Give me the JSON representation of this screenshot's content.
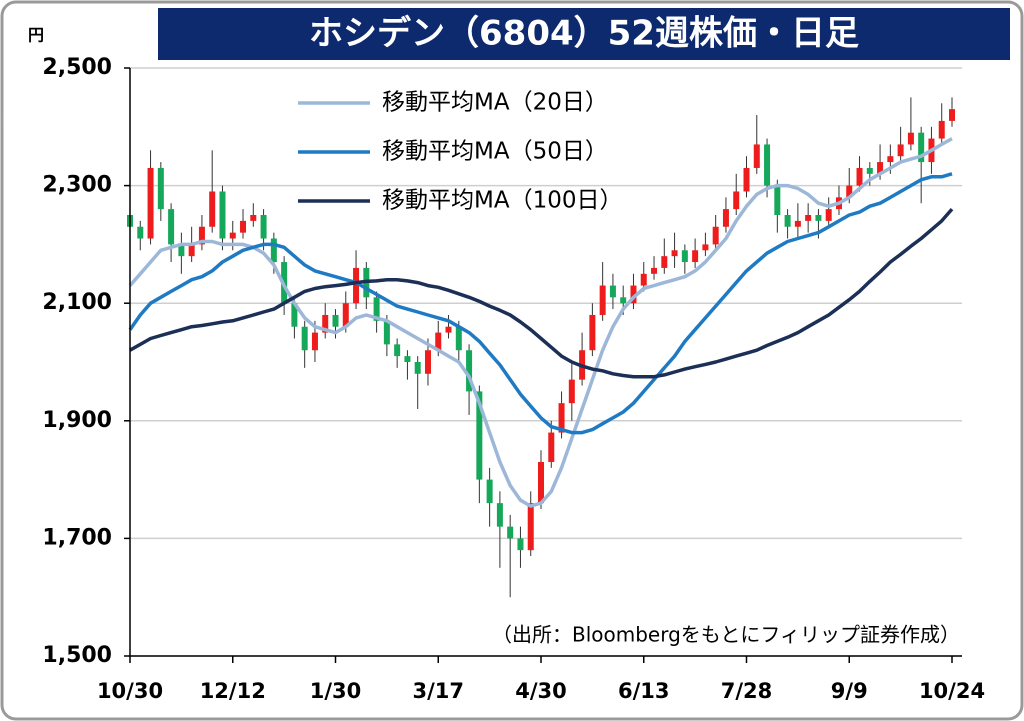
{
  "chart_data": {
    "type": "candlestick",
    "title": "ホシデン（6804）52週株価・日足",
    "y_unit": "円",
    "source": "（出所：Bloombergをもとにフィリップ証券作成）",
    "ylim": [
      1500,
      2500
    ],
    "yticks": [
      {
        "value": 1500,
        "label": "1,500"
      },
      {
        "value": 1700,
        "label": "1,700"
      },
      {
        "value": 1900,
        "label": "1,900"
      },
      {
        "value": 2100,
        "label": "2,100"
      },
      {
        "value": 2300,
        "label": "2,300"
      },
      {
        "value": 2500,
        "label": "2,500"
      }
    ],
    "grid": true,
    "categories": [
      "10/30",
      null,
      null,
      null,
      null,
      null,
      null,
      null,
      null,
      null,
      "12/12",
      null,
      null,
      null,
      null,
      null,
      null,
      null,
      null,
      null,
      "1/30",
      null,
      null,
      null,
      null,
      null,
      null,
      null,
      null,
      null,
      "3/17",
      null,
      null,
      null,
      null,
      null,
      null,
      null,
      null,
      null,
      "4/30",
      null,
      null,
      null,
      null,
      null,
      null,
      null,
      null,
      null,
      "6/13",
      null,
      null,
      null,
      null,
      null,
      null,
      null,
      null,
      null,
      "7/28",
      null,
      null,
      null,
      null,
      null,
      null,
      null,
      null,
      null,
      "9/9",
      null,
      null,
      null,
      null,
      null,
      null,
      null,
      null,
      null,
      "10/24"
    ],
    "candles": {
      "up_color": "#ee1c1c",
      "down_color": "#16a85a",
      "open": [
        2250,
        2230,
        2210,
        2330,
        2260,
        2200,
        2180,
        2200,
        2230,
        2290,
        2210,
        2220,
        2240,
        2250,
        2210,
        2170,
        2100,
        2060,
        2020,
        2050,
        2080,
        2060,
        2100,
        2160,
        2110,
        2070,
        2030,
        2010,
        2000,
        1980,
        2020,
        2050,
        2060,
        2020,
        1950,
        1800,
        1760,
        1720,
        1700,
        1680,
        1760,
        1830,
        1880,
        1930,
        1970,
        2020,
        2080,
        2130,
        2110,
        2100,
        2130,
        2150,
        2160,
        2180,
        2190,
        2170,
        2190,
        2200,
        2230,
        2260,
        2290,
        2330,
        2370,
        2300,
        2250,
        2230,
        2240,
        2250,
        2240,
        2260,
        2280,
        2300,
        2330,
        2320,
        2340,
        2350,
        2370,
        2390,
        2340,
        2380,
        2410
      ],
      "high": [
        2260,
        2240,
        2360,
        2340,
        2270,
        2220,
        2230,
        2250,
        2360,
        2300,
        2240,
        2260,
        2270,
        2260,
        2220,
        2180,
        2110,
        2070,
        2070,
        2100,
        2090,
        2120,
        2190,
        2170,
        2120,
        2080,
        2040,
        2020,
        2010,
        2040,
        2070,
        2080,
        2070,
        2030,
        1960,
        1820,
        1780,
        1740,
        1720,
        1780,
        1850,
        1900,
        1950,
        2000,
        2050,
        2100,
        2170,
        2150,
        2130,
        2150,
        2170,
        2180,
        2210,
        2220,
        2200,
        2210,
        2220,
        2250,
        2280,
        2320,
        2350,
        2420,
        2380,
        2310,
        2260,
        2270,
        2270,
        2260,
        2280,
        2300,
        2330,
        2350,
        2340,
        2370,
        2370,
        2400,
        2450,
        2400,
        2400,
        2440,
        2450
      ],
      "low": [
        2210,
        2190,
        2200,
        2240,
        2170,
        2150,
        2170,
        2190,
        2220,
        2190,
        2190,
        2210,
        2230,
        2190,
        2150,
        2080,
        2040,
        1990,
        2000,
        2040,
        2040,
        2050,
        2090,
        2090,
        2050,
        2010,
        1990,
        1970,
        1920,
        1960,
        2010,
        2040,
        2000,
        1910,
        1760,
        1720,
        1650,
        1600,
        1650,
        1670,
        1750,
        1820,
        1870,
        1900,
        1960,
        2010,
        2070,
        2090,
        2080,
        2090,
        2120,
        2140,
        2150,
        2160,
        2150,
        2160,
        2180,
        2190,
        2220,
        2250,
        2280,
        2320,
        2280,
        2220,
        2210,
        2210,
        2220,
        2210,
        2230,
        2250,
        2270,
        2290,
        2300,
        2310,
        2320,
        2340,
        2360,
        2270,
        2320,
        2370,
        2400
      ],
      "close": [
        2230,
        2210,
        2330,
        2260,
        2200,
        2180,
        2200,
        2230,
        2290,
        2210,
        2220,
        2240,
        2250,
        2210,
        2170,
        2100,
        2060,
        2020,
        2050,
        2080,
        2060,
        2100,
        2160,
        2110,
        2070,
        2030,
        2010,
        2000,
        1980,
        2020,
        2050,
        2060,
        2020,
        1950,
        1800,
        1760,
        1720,
        1700,
        1680,
        1760,
        1830,
        1880,
        1930,
        1970,
        2020,
        2080,
        2130,
        2110,
        2100,
        2130,
        2150,
        2160,
        2180,
        2190,
        2170,
        2190,
        2200,
        2230,
        2260,
        2290,
        2330,
        2370,
        2300,
        2250,
        2230,
        2240,
        2250,
        2240,
        2260,
        2280,
        2300,
        2330,
        2320,
        2340,
        2350,
        2370,
        2390,
        2340,
        2380,
        2410,
        2430
      ]
    },
    "series": [
      {
        "name": "移動平均MA（20日）",
        "color": "#9db7d9",
        "values": [
          2130,
          2150,
          2170,
          2190,
          2195,
          2200,
          2200,
          2205,
          2205,
          2200,
          2200,
          2200,
          2195,
          2185,
          2165,
          2130,
          2100,
          2075,
          2060,
          2055,
          2050,
          2060,
          2075,
          2080,
          2075,
          2070,
          2060,
          2050,
          2040,
          2030,
          2020,
          2010,
          2000,
          1975,
          1930,
          1880,
          1830,
          1790,
          1765,
          1755,
          1760,
          1780,
          1820,
          1870,
          1920,
          1970,
          2020,
          2060,
          2090,
          2110,
          2125,
          2130,
          2135,
          2140,
          2145,
          2155,
          2170,
          2190,
          2210,
          2240,
          2265,
          2285,
          2295,
          2300,
          2300,
          2295,
          2285,
          2270,
          2265,
          2270,
          2280,
          2295,
          2310,
          2320,
          2330,
          2340,
          2345,
          2350,
          2360,
          2370,
          2380
        ]
      },
      {
        "name": "移動平均MA（50日）",
        "color": "#1f7ac4",
        "values": [
          2055,
          2080,
          2100,
          2110,
          2120,
          2130,
          2140,
          2145,
          2155,
          2170,
          2180,
          2190,
          2195,
          2200,
          2200,
          2195,
          2180,
          2165,
          2155,
          2150,
          2145,
          2140,
          2135,
          2125,
          2115,
          2105,
          2095,
          2090,
          2085,
          2080,
          2075,
          2070,
          2060,
          2050,
          2035,
          2015,
          1995,
          1970,
          1945,
          1925,
          1905,
          1890,
          1885,
          1880,
          1880,
          1885,
          1895,
          1905,
          1915,
          1930,
          1950,
          1970,
          1990,
          2010,
          2035,
          2055,
          2075,
          2095,
          2115,
          2135,
          2155,
          2170,
          2185,
          2195,
          2205,
          2210,
          2215,
          2220,
          2230,
          2240,
          2250,
          2255,
          2265,
          2270,
          2280,
          2290,
          2300,
          2310,
          2315,
          2315,
          2320
        ]
      },
      {
        "name": "移動平均MA（100日）",
        "color": "#1b2f57",
        "values": [
          2020,
          2030,
          2040,
          2045,
          2050,
          2055,
          2060,
          2062,
          2065,
          2068,
          2070,
          2075,
          2080,
          2085,
          2090,
          2100,
          2110,
          2120,
          2125,
          2128,
          2130,
          2132,
          2135,
          2137,
          2138,
          2140,
          2140,
          2138,
          2135,
          2130,
          2127,
          2122,
          2116,
          2110,
          2103,
          2095,
          2088,
          2080,
          2068,
          2055,
          2040,
          2025,
          2010,
          2000,
          1993,
          1988,
          1985,
          1980,
          1977,
          1975,
          1975,
          1975,
          1978,
          1983,
          1988,
          1992,
          1996,
          2000,
          2005,
          2010,
          2015,
          2020,
          2028,
          2035,
          2042,
          2050,
          2060,
          2070,
          2080,
          2093,
          2106,
          2120,
          2137,
          2153,
          2170,
          2183,
          2197,
          2210,
          2225,
          2240,
          2260
        ]
      }
    ]
  }
}
